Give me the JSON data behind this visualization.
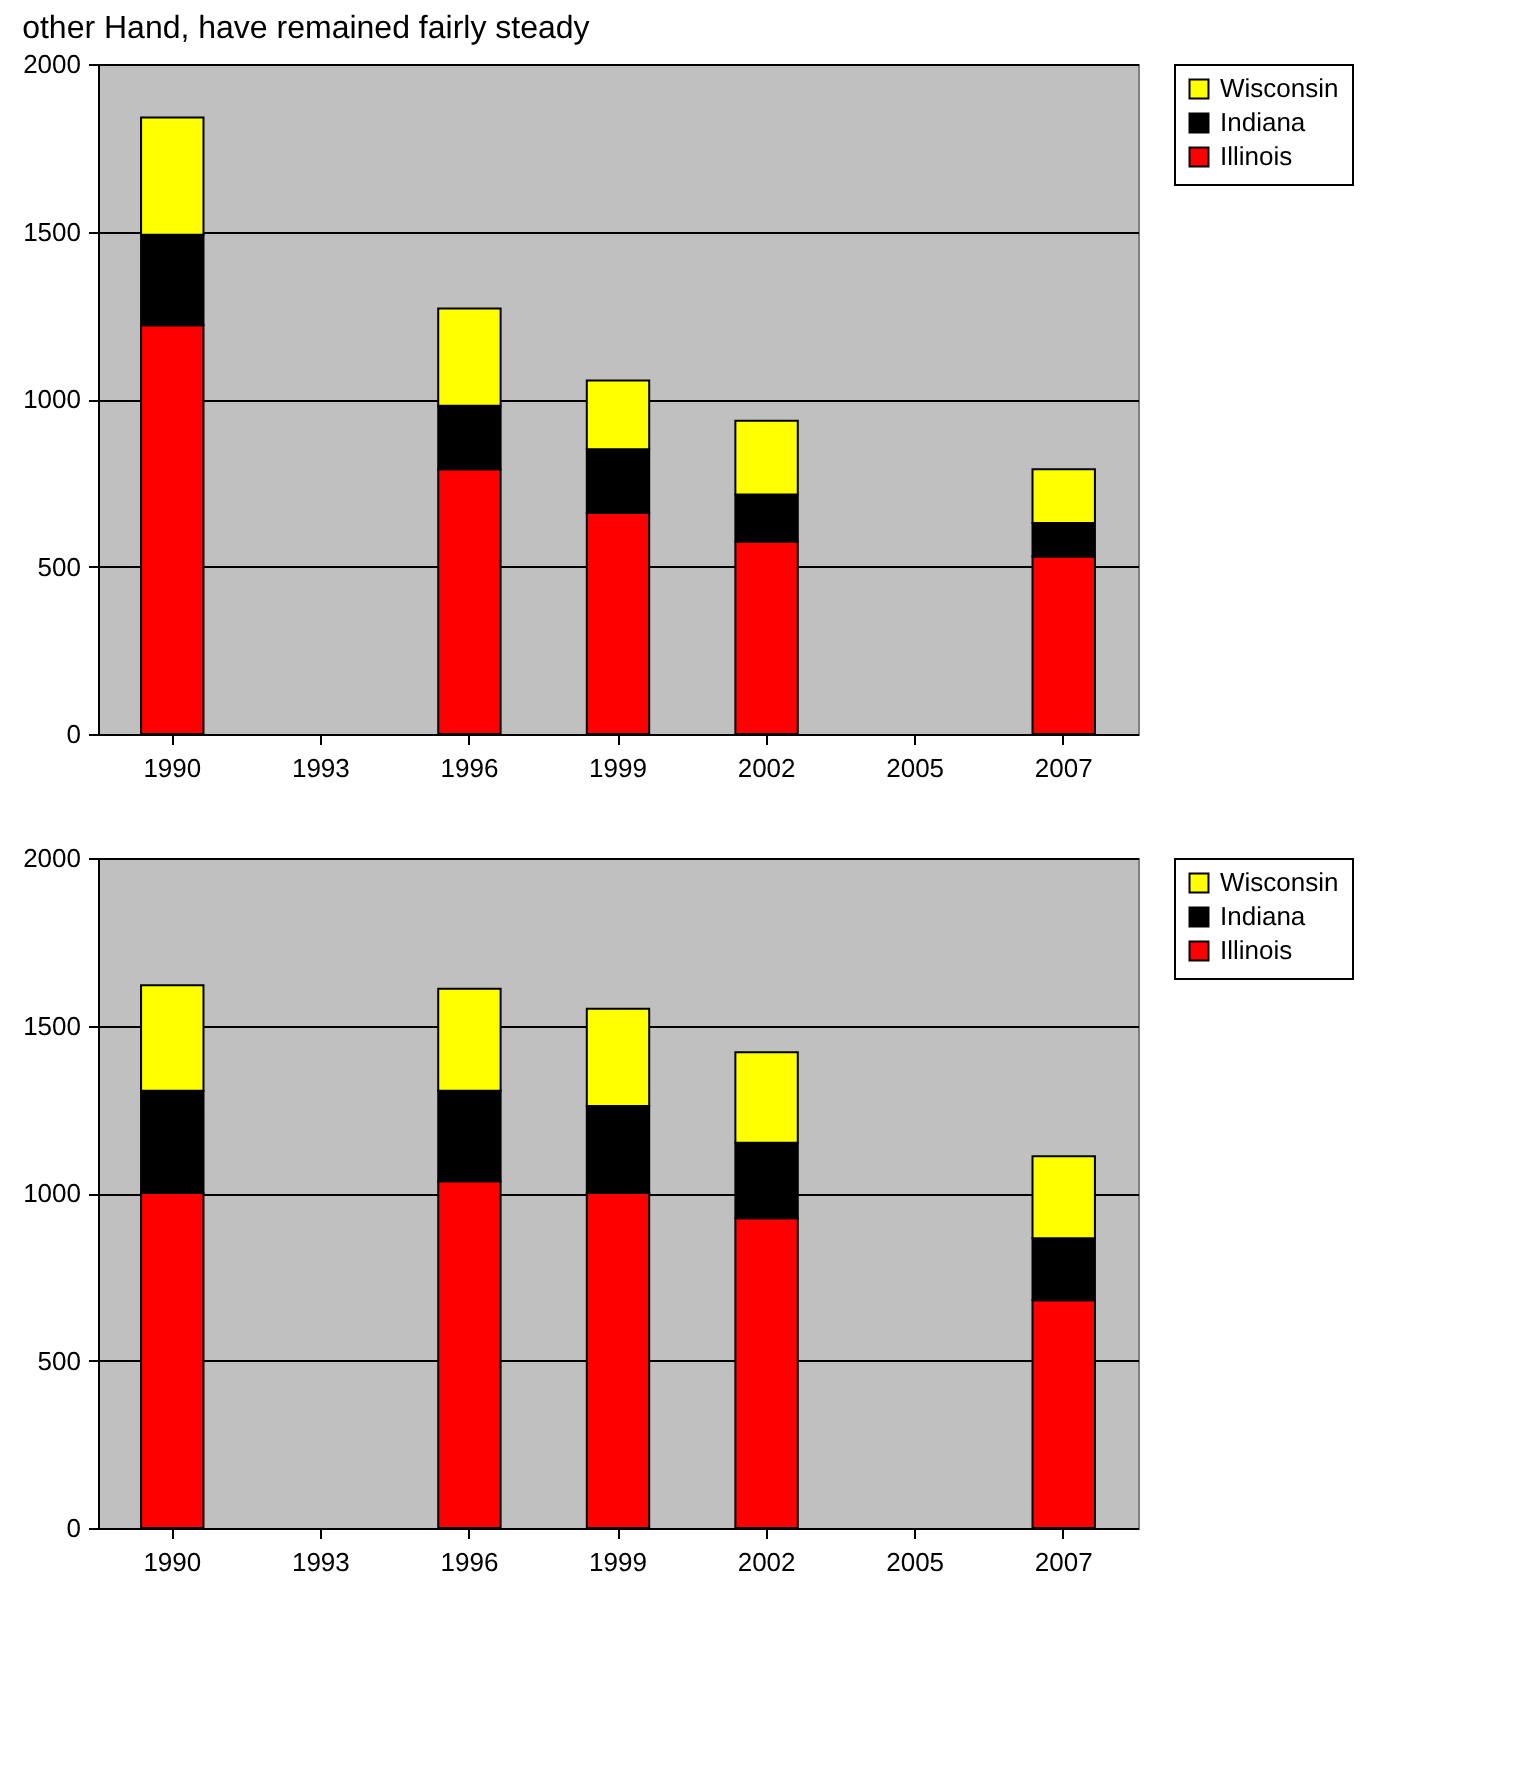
{
  "chart_data": [
    {
      "type": "bar",
      "title": "other Hand, have remained fairly steady",
      "stacked": true,
      "categories": [
        "1990",
        "1993",
        "1996",
        "1999",
        "2002",
        "2005",
        "2007"
      ],
      "series": [
        {
          "name": "Illinois",
          "color": "#ff0000",
          "values": [
            1220,
            null,
            790,
            660,
            575,
            null,
            530
          ]
        },
        {
          "name": "Indiana",
          "color": "#000000",
          "values": [
            270,
            null,
            190,
            190,
            140,
            null,
            100
          ]
        },
        {
          "name": "Wisconsin",
          "color": "#ffff00",
          "values": [
            350,
            null,
            290,
            205,
            220,
            null,
            160
          ]
        }
      ],
      "ylim": [
        0,
        2000
      ],
      "yticks": [
        0,
        500,
        1000,
        1500,
        2000
      ],
      "grid": "y",
      "legend": "right"
    },
    {
      "type": "bar",
      "stacked": true,
      "categories": [
        "1990",
        "1993",
        "1996",
        "1999",
        "2002",
        "2005",
        "2007"
      ],
      "series": [
        {
          "name": "Illinois",
          "color": "#ff0000",
          "values": [
            1000,
            null,
            1035,
            1000,
            925,
            null,
            680
          ]
        },
        {
          "name": "Indiana",
          "color": "#000000",
          "values": [
            305,
            null,
            270,
            260,
            225,
            null,
            185
          ]
        },
        {
          "name": "Wisconsin",
          "color": "#ffff00",
          "values": [
            315,
            null,
            305,
            290,
            270,
            null,
            245
          ]
        }
      ],
      "ylim": [
        0,
        2000
      ],
      "yticks": [
        0,
        500,
        1000,
        1500,
        2000
      ],
      "grid": "y",
      "legend": "right"
    }
  ]
}
